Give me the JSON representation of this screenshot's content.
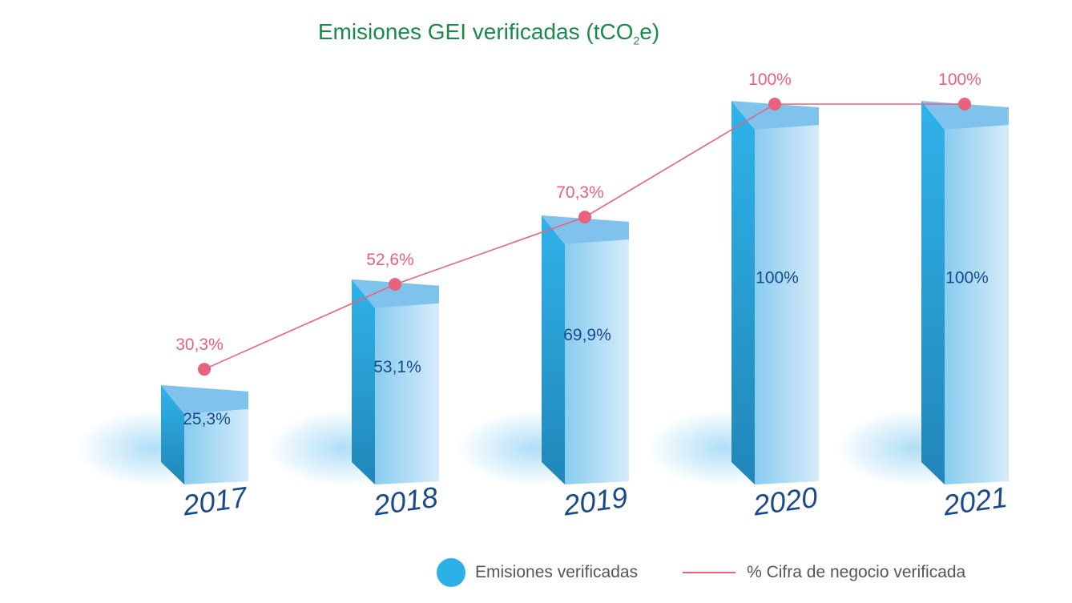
{
  "chart_data": {
    "type": "bar",
    "title": "Emisiones GEI verificadas (tCO",
    "title_subscript": "2",
    "title_suffix": "e)",
    "categories": [
      "2017",
      "2018",
      "2019",
      "2020",
      "2021"
    ],
    "series": [
      {
        "name": "Emisiones verificadas",
        "type": "bar",
        "values": [
          25.3,
          53.1,
          69.9,
          100,
          100
        ],
        "labels": [
          "25,3%",
          "53,1%",
          "69,9%",
          "100%",
          "100%"
        ],
        "color": "#2cb0e8"
      },
      {
        "name": "% Cifra de negocio verificada",
        "type": "line",
        "values": [
          30.3,
          52.6,
          70.3,
          100,
          100
        ],
        "labels": [
          "30,3%",
          "52,6%",
          "70,3%",
          "100%",
          "100%"
        ],
        "color": "#e8627e"
      }
    ],
    "ylim": [
      0,
      100
    ],
    "grid": false,
    "legend_position": "bottom-right"
  },
  "colors": {
    "title": "#1a8a4a",
    "bar_label": "#1a4a8a",
    "year_label": "#1a4a8a",
    "line": "#e8627e"
  }
}
